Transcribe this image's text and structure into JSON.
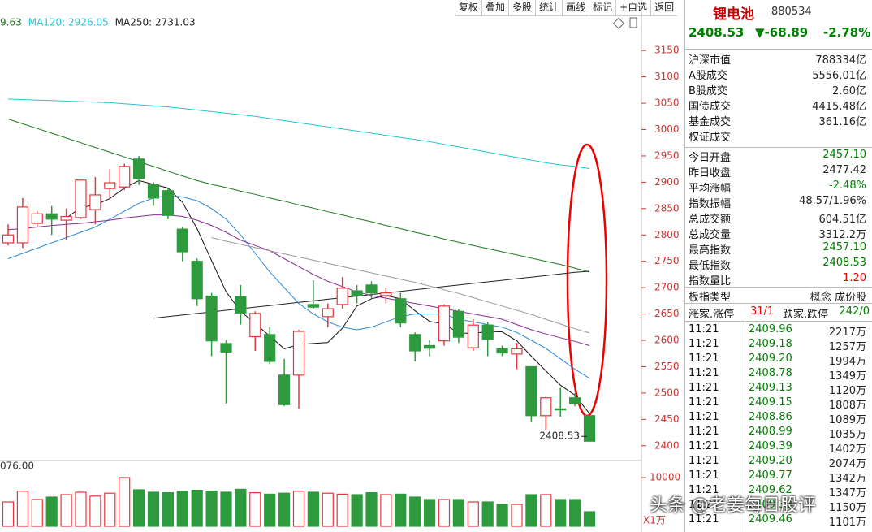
{
  "toolbar": [
    "复权",
    "叠加",
    "多股",
    "统计",
    "画线",
    "标记",
    "+自选",
    "返回"
  ],
  "chart_data": {
    "type": "candlestick",
    "open": [
      2785,
      2785,
      2822,
      2840,
      2828,
      2833,
      2848,
      2888,
      2891,
      2944,
      2895,
      2884,
      2811,
      2750,
      2684,
      2594,
      2683,
      2607,
      2611,
      2534,
      2534,
      2668,
      2645,
      2668,
      2694,
      2705,
      2685,
      2679,
      2611,
      2590,
      2599,
      2655,
      2586,
      2629,
      2584,
      2574,
      2550,
      2457,
      2470,
      2491,
      2457.1
    ],
    "high": [
      2820,
      2870,
      2845,
      2855,
      2850,
      2905,
      2910,
      2925,
      2935,
      2950,
      2900,
      2890,
      2815,
      2755,
      2690,
      2600,
      2705,
      2655,
      2625,
      2565,
      2620,
      2714,
      2670,
      2720,
      2705,
      2712,
      2700,
      2690,
      2615,
      2600,
      2668,
      2660,
      2640,
      2635,
      2590,
      2595,
      2550,
      2493,
      2510,
      2500,
      2457.1
    ],
    "low": [
      2780,
      2775,
      2815,
      2800,
      2790,
      2830,
      2820,
      2870,
      2885,
      2895,
      2855,
      2830,
      2750,
      2665,
      2570,
      2480,
      2630,
      2580,
      2555,
      2475,
      2470,
      2660,
      2625,
      2660,
      2670,
      2680,
      2670,
      2625,
      2560,
      2570,
      2590,
      2595,
      2580,
      2570,
      2570,
      2545,
      2445,
      2430,
      2455,
      2475,
      2408.53
    ],
    "close": [
      2800,
      2853,
      2840,
      2830,
      2835,
      2904,
      2876,
      2899,
      2930,
      2907,
      2870,
      2837,
      2768,
      2679,
      2599,
      2578,
      2652,
      2651,
      2560,
      2478,
      2617,
      2663,
      2660,
      2699,
      2685,
      2690,
      2690,
      2633,
      2580,
      2585,
      2665,
      2606,
      2629,
      2602,
      2576,
      2584,
      2457,
      2491,
      2468,
      2480,
      2408.53
    ],
    "up_color": "#e8343b",
    "down_color": "#2e9a3e",
    "ylim": [
      2375,
      3215
    ],
    "yticks": [
      2400,
      2450,
      2500,
      2550,
      2600,
      2650,
      2700,
      2750,
      2800,
      2850,
      2900,
      2950,
      3000,
      3050,
      3100,
      3150
    ],
    "lines": [
      {
        "name": "9.63",
        "color": "#1e7a1e",
        "values": [
          3020,
          3011,
          3002,
          2993,
          2984,
          2975,
          2966,
          2957,
          2948,
          2939,
          2930,
          2921,
          2912,
          2903,
          2896,
          2890,
          2883,
          2877,
          2870,
          2864,
          2857,
          2851,
          2844,
          2838,
          2831,
          2825,
          2818,
          2812,
          2805,
          2799,
          2792,
          2786,
          2780,
          2774,
          2768,
          2762,
          2756,
          2750,
          2744,
          2737,
          2729.63
        ]
      },
      {
        "name": "MA120: 2926.05",
        "color": "#22c5d0",
        "values": [
          3058,
          3057,
          3056,
          3055,
          3054,
          3053,
          3052,
          3051,
          3049,
          3047,
          3045,
          3043,
          3040,
          3037,
          3034,
          3031,
          3028,
          3025,
          3021,
          3017,
          3013,
          3009,
          3005,
          3001,
          2997,
          2993,
          2989,
          2985,
          2981,
          2977,
          2972,
          2967,
          2962,
          2957,
          2952,
          2947,
          2942,
          2937,
          2933,
          2930,
          2926.05
        ]
      },
      {
        "name": "MA250: 2731.03",
        "color": "#222222",
        "values": [
          null,
          null,
          null,
          null,
          null,
          null,
          null,
          null,
          null,
          null,
          2642,
          2645,
          2648,
          2651,
          2654,
          2657,
          2660,
          2663,
          2666,
          2669,
          2672,
          2675,
          2678,
          2681,
          2684,
          2687,
          2690,
          2693,
          2696,
          2699,
          2702,
          2705,
          2708,
          2711,
          2714,
          2717,
          2720,
          2723,
          2726,
          2729,
          2731.03
        ]
      },
      {
        "color": "#111111",
        "values": [
          null,
          null,
          null,
          null,
          2832,
          2852,
          2857,
          2869,
          2889,
          2903,
          2896,
          2889,
          2862,
          2812,
          2751,
          2692,
          2655,
          2632,
          2608,
          2584,
          2592,
          2594,
          2596,
          2623,
          2665,
          2679,
          2685,
          2679,
          2656,
          2636,
          2631,
          2614,
          2613,
          2617,
          2616,
          2599,
          2570,
          2542,
          2515,
          2496,
          2461
        ]
      },
      {
        "color": "#2a8ad8",
        "values": [
          2755,
          2765,
          2775,
          2785,
          2795,
          2805,
          2815,
          2830,
          2845,
          2860,
          2870,
          2875,
          2872,
          2865,
          2850,
          2830,
          2800,
          2765,
          2730,
          2700,
          2670,
          2650,
          2635,
          2625,
          2620,
          2625,
          2635,
          2645,
          2650,
          2650,
          2650,
          2640,
          2635,
          2630,
          2625,
          2615,
          2600,
          2585,
          2565,
          2545,
          2528
        ]
      },
      {
        "color": "#8a2a9a",
        "values": [
          2810,
          2812,
          2815,
          2818,
          2820,
          2822,
          2825,
          2828,
          2832,
          2835,
          2838,
          2838,
          2835,
          2828,
          2818,
          2805,
          2790,
          2780,
          2770,
          2755,
          2740,
          2725,
          2712,
          2702,
          2692,
          2685,
          2680,
          2675,
          2670,
          2665,
          2660,
          2655,
          2650,
          2645,
          2640,
          2630,
          2620,
          2612,
          2605,
          2598,
          2590
        ]
      },
      {
        "color": "#999999",
        "values": [
          null,
          null,
          null,
          null,
          null,
          null,
          null,
          null,
          null,
          null,
          null,
          null,
          null,
          null,
          2795,
          2788,
          2782,
          2776,
          2770,
          2764,
          2758,
          2752,
          2746,
          2740,
          2734,
          2728,
          2722,
          2716,
          2710,
          2703,
          2696,
          2689,
          2681,
          2673,
          2665,
          2657,
          2649,
          2640,
          2631,
          2622,
          2614
        ]
      }
    ],
    "annotation": "2408.53",
    "volume": {
      "top_label": "076.00",
      "unit": "X1万",
      "ylim": [
        0,
        13000
      ],
      "yticks": [
        10000
      ],
      "values": [
        5000,
        7200,
        5500,
        6000,
        6500,
        7000,
        6200,
        6800,
        10000,
        7500,
        7000,
        6900,
        7200,
        7400,
        7200,
        7000,
        7600,
        6900,
        6600,
        6800,
        7200,
        7000,
        6800,
        6600,
        6500,
        6900,
        6500,
        6600,
        6000,
        5500,
        5500,
        5500,
        5000,
        5000,
        4500,
        4500,
        6500,
        6500,
        5500,
        5500,
        3000
      ]
    }
  },
  "quote": {
    "name": "锂电池",
    "code": "880534",
    "price": "2408.53",
    "change": "▼-68.89",
    "change_pct": "-2.78%"
  },
  "stats_a": [
    {
      "label": "沪深市值",
      "value": "788334亿"
    },
    {
      "label": "A股成交",
      "value": "5556.01亿"
    },
    {
      "label": "B股成交",
      "value": "2.60亿"
    },
    {
      "label": "国债成交",
      "value": "4415.48亿"
    },
    {
      "label": "基金成交",
      "value": "361.16亿"
    },
    {
      "label": "权证成交"
    }
  ],
  "stats_b": [
    {
      "label": "今日开盘",
      "value": "2457.10",
      "color": "#008000"
    },
    {
      "label": "昨日收盘",
      "value": "2477.42",
      "color": "#222"
    },
    {
      "label": "平均涨幅",
      "value": "-2.48%",
      "color": "#008000"
    },
    {
      "label": "指数振幅",
      "value": "48.57/1.96%",
      "color": "#222"
    },
    {
      "label": "总成交额",
      "value": "604.51亿",
      "color": "#222"
    },
    {
      "label": "总成交量",
      "value": "3312.2万",
      "color": "#222"
    },
    {
      "label": "最高指数",
      "value": "2457.10",
      "color": "#008000"
    },
    {
      "label": "最低指数",
      "value": "2408.53",
      "color": "#008000"
    },
    {
      "label": "指数量比",
      "value": "1.20",
      "color": "#e00000"
    }
  ],
  "index_type": {
    "label": "板指类型",
    "value": "概念 成份股"
  },
  "breadth": {
    "up_label": "涨家.涨停",
    "up_value": "31/1",
    "down_label": "跌家.跌停",
    "down_value": "242/0"
  },
  "ticks": [
    [
      "11:21",
      "2409.96",
      "2217万"
    ],
    [
      "11:21",
      "2409.18",
      "1257万"
    ],
    [
      "11:21",
      "2409.20",
      "1994万"
    ],
    [
      "11:21",
      "2408.78",
      "1349万"
    ],
    [
      "11:21",
      "2409.13",
      "1120万"
    ],
    [
      "11:21",
      "2409.15",
      "1808万"
    ],
    [
      "11:21",
      "2408.86",
      "1089万"
    ],
    [
      "11:21",
      "2408.99",
      "1035万"
    ],
    [
      "11:21",
      "2409.39",
      "1402万"
    ],
    [
      "11:21",
      "2409.20",
      "2074万"
    ],
    [
      "11:21",
      "2409.77",
      "1342万"
    ],
    [
      "11:21",
      "2409.62",
      "1347万"
    ],
    [
      "11:21",
      "2409.30",
      "1150万"
    ],
    [
      "11:21",
      "2409.46",
      "1101万"
    ]
  ],
  "watermark": "头条 @老姜每日股评"
}
